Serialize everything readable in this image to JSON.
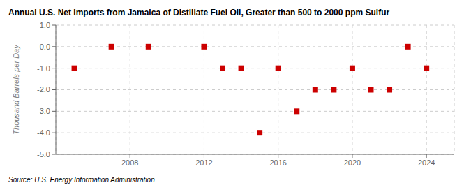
{
  "chart_data": {
    "type": "scatter",
    "title": "Annual U.S. Net Imports from Jamaica of Distillate Fuel Oil, Greater than 500 to 2000 ppm Sulfur",
    "ylabel": "Thousand Barrels per Day",
    "source": "Source: U.S. Energy Information Administration",
    "x": [
      2005,
      2007,
      2009,
      2012,
      2013,
      2014,
      2015,
      2016,
      2017,
      2018,
      2019,
      2020,
      2021,
      2022,
      2023,
      2024
    ],
    "values": [
      -1.0,
      0.0,
      0.0,
      0.0,
      -1.0,
      -1.0,
      -4.0,
      -1.0,
      -3.0,
      -2.0,
      -2.0,
      -1.0,
      -2.0,
      -2.0,
      0.0,
      -1.0
    ],
    "color": "#cc0000",
    "marker": "square",
    "xlim": [
      2004,
      2025.5
    ],
    "xticks": [
      2008,
      2012,
      2016,
      2020,
      2024
    ],
    "ylim": [
      -5.0,
      1.0
    ],
    "yticks": [
      {
        "value": 1.0,
        "label": "1.0"
      },
      {
        "value": 0.0,
        "label": "0.0"
      },
      {
        "value": -1.0,
        "label": "-1.0"
      },
      {
        "value": -2.0,
        "label": "-2.0"
      },
      {
        "value": -3.0,
        "label": "-3.0"
      },
      {
        "value": -4.0,
        "label": "-4.0"
      },
      {
        "value": -5.0,
        "label": "-5.0"
      }
    ],
    "grid": true
  }
}
